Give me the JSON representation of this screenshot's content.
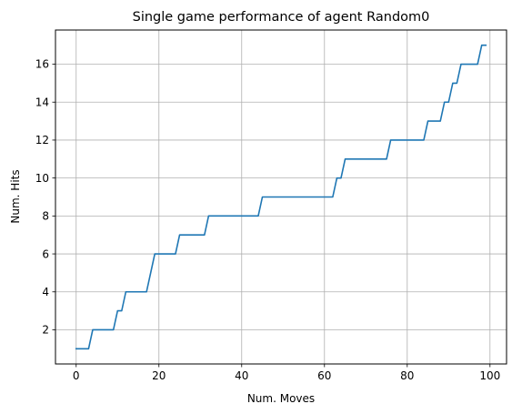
{
  "chart_data": {
    "type": "line",
    "title": "Single game performance of agent Random0",
    "xlabel": "Num. Moves",
    "ylabel": "Num. Hits",
    "xlim": [
      -5,
      104
    ],
    "ylim": [
      0.2,
      17.8
    ],
    "xticks": [
      0,
      20,
      40,
      60,
      80,
      100
    ],
    "yticks": [
      2,
      4,
      6,
      8,
      10,
      12,
      14,
      16
    ],
    "grid": true,
    "line_color": "#1f77b4",
    "series": [
      {
        "x": [
          0,
          1,
          2,
          3,
          4,
          5,
          6,
          7,
          8,
          9,
          10,
          11,
          12,
          13,
          14,
          15,
          16,
          17,
          18,
          19,
          20,
          21,
          22,
          23,
          24,
          25,
          26,
          27,
          28,
          29,
          30,
          31,
          32,
          33,
          34,
          35,
          36,
          37,
          38,
          39,
          40,
          41,
          42,
          43,
          44,
          45,
          46,
          47,
          48,
          49,
          50,
          51,
          52,
          53,
          54,
          55,
          56,
          57,
          58,
          59,
          60,
          61,
          62,
          63,
          64,
          65,
          66,
          67,
          68,
          69,
          70,
          71,
          72,
          73,
          74,
          75,
          76,
          77,
          78,
          79,
          80,
          81,
          82,
          83,
          84,
          85,
          86,
          87,
          88,
          89,
          90,
          91,
          92,
          93,
          94,
          95,
          96,
          97,
          98,
          99
        ],
        "y": [
          1,
          1,
          1,
          1,
          2,
          2,
          2,
          2,
          2,
          2,
          3,
          3,
          4,
          4,
          4,
          4,
          4,
          4,
          5,
          6,
          6,
          6,
          6,
          6,
          6,
          7,
          7,
          7,
          7,
          7,
          7,
          7,
          8,
          8,
          8,
          8,
          8,
          8,
          8,
          8,
          8,
          8,
          8,
          8,
          8,
          9,
          9,
          9,
          9,
          9,
          9,
          9,
          9,
          9,
          9,
          9,
          9,
          9,
          9,
          9,
          9,
          9,
          9,
          10,
          10,
          11,
          11,
          11,
          11,
          11,
          11,
          11,
          11,
          11,
          11,
          11,
          12,
          12,
          12,
          12,
          12,
          12,
          12,
          12,
          12,
          13,
          13,
          13,
          13,
          14,
          14,
          15,
          15,
          16,
          16,
          16,
          16,
          16,
          17,
          17
        ]
      }
    ]
  }
}
